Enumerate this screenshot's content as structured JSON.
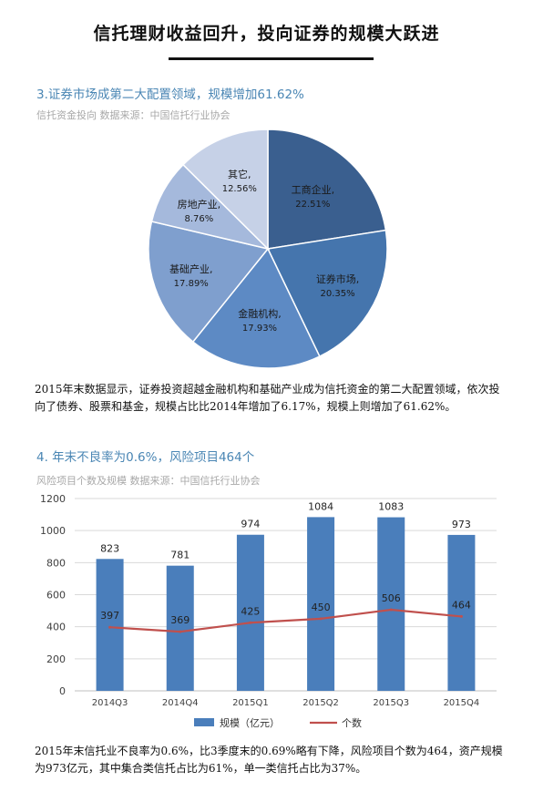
{
  "header": {
    "title": "信托理财收益回升，投向证券的规模大跃进"
  },
  "section3": {
    "title": "3.证券市场成第二大配置领域，规模增加61.62%",
    "subtitle": "信托资金投向  数据来源：中国信托行业协会",
    "paragraph": "2015年末数据显示，证券投资超越金融机构和基础产业成为信托资金的第二大配置领域，依次投向了债券、股票和基金，规模占比比2014年增加了6.17%，规模上则增加了61.62%。"
  },
  "section4": {
    "title": "4. 年末不良率为0.6%，风险项目464个",
    "subtitle": "风险项目个数及规模  数据来源：中国信托行业协会",
    "paragraph": "2015年末信托业不良率为0.6%，比3季度末的0.69%略有下降，风险项目个数为464，资产规模为973亿元，其中集合类信托占比为61%，单一类信托占比为37%。"
  },
  "chart_data": [
    {
      "type": "pie",
      "slices": [
        {
          "label": "工商企业",
          "value": 22.51,
          "text": "22.51%",
          "color": "#3a5f8f"
        },
        {
          "label": "证券市场",
          "value": 20.35,
          "text": "20.35%",
          "color": "#4575ad"
        },
        {
          "label": "金融机构",
          "value": 17.93,
          "text": "17.93%",
          "color": "#5d8ac4"
        },
        {
          "label": "基础产业",
          "value": 17.89,
          "text": "17.89%",
          "color": "#7f9fce"
        },
        {
          "label": "房地产业",
          "value": 8.76,
          "text": "8.76%",
          "color": "#a5b9dc"
        },
        {
          "label": "其它",
          "value": 12.56,
          "text": "12.56%",
          "color": "#c6d1e7"
        }
      ]
    },
    {
      "type": "bar",
      "categories": [
        "2014Q3",
        "2014Q4",
        "2015Q1",
        "2015Q2",
        "2015Q3",
        "2015Q4"
      ],
      "series": [
        {
          "name": "规模（亿元）",
          "type": "bar",
          "values": [
            823,
            781,
            974,
            1084,
            1083,
            973
          ],
          "color": "#4a7ebb"
        },
        {
          "name": "个数",
          "type": "line",
          "values": [
            397,
            369,
            425,
            450,
            506,
            464
          ],
          "color": "#c0504d"
        }
      ],
      "ylim": [
        0,
        1200
      ],
      "yticks": [
        0,
        200,
        400,
        600,
        800,
        1000,
        1200
      ],
      "grid": true,
      "legend_position": "bottom"
    }
  ]
}
